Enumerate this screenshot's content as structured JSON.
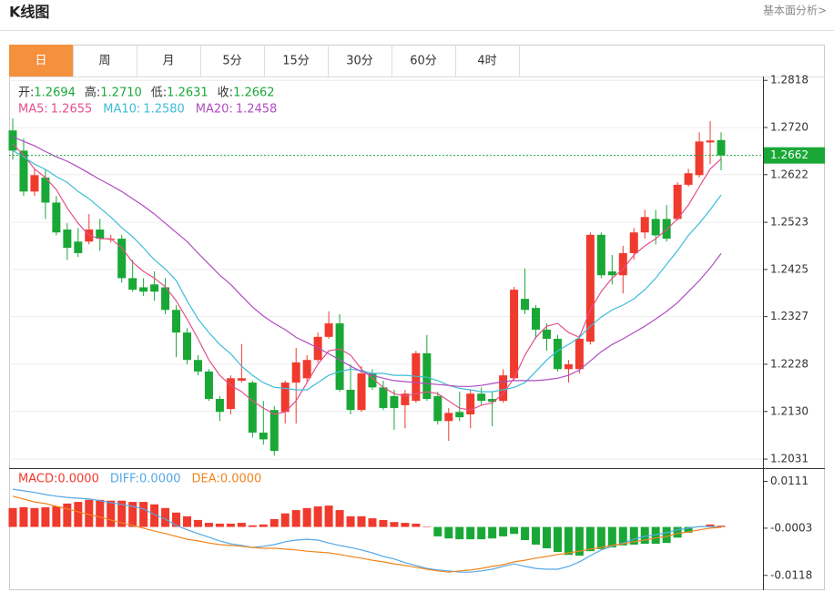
{
  "header": {
    "title": "K线图",
    "link": "基本面分析>"
  },
  "tabs": [
    "日",
    "周",
    "月",
    "5分",
    "15分",
    "30分",
    "60分",
    "4时"
  ],
  "active_tab": 0,
  "chart_data": [
    {
      "type": "candlestick",
      "up_color": "#ef3a2d",
      "down_color": "#19a836",
      "legend": [
        {
          "label": "开:",
          "value": 1.2694
        },
        {
          "label": "高:",
          "value": {
            "value": 1.271,
            "label": "1.2710"
          }
        },
        {
          "label": "低:",
          "value": 1.2631
        },
        {
          "label": "收:",
          "value": 1.2662
        }
      ],
      "open": [
        1.2714,
        1.2672,
        1.2587,
        1.2616,
        1.2564,
        1.2508,
        1.2483,
        1.2483,
        1.2508,
        1.2487,
        1.2489,
        1.2407,
        1.2388,
        1.2394,
        1.2388,
        1.2341,
        1.2294,
        1.2237,
        1.2213,
        1.2156,
        1.2135,
        1.2194,
        1.219,
        1.2086,
        1.2133,
        1.2129,
        1.219,
        1.2199,
        1.2237,
        1.2285,
        1.2313,
        1.2175,
        1.2133,
        1.2209,
        1.218,
        1.2162,
        1.2143,
        1.2152,
        1.2251,
        1.2162,
        1.211,
        1.2129,
        1.2124,
        1.2167,
        1.2156,
        1.2152,
        1.2199,
        1.2364,
        1.2345,
        1.23,
        1.2281,
        1.2218,
        1.2218,
        1.2275,
        1.2497,
        1.2421,
        1.2413,
        1.2459,
        1.2502,
        1.253,
        1.253,
        1.253,
        1.2601,
        1.2621,
        1.2689,
        1.2694
      ],
      "high": [
        1.2739,
        1.2697,
        1.2634,
        1.2634,
        1.2578,
        1.2521,
        1.2511,
        1.254,
        1.253,
        1.2497,
        1.2497,
        1.2445,
        1.2407,
        1.2421,
        1.2407,
        1.2351,
        1.2303,
        1.2247,
        1.2218,
        1.2162,
        1.2205,
        1.227,
        1.2194,
        1.2152,
        1.2141,
        1.2194,
        1.2262,
        1.2247,
        1.2294,
        1.2338,
        1.2332,
        1.2228,
        1.2224,
        1.2218,
        1.2194,
        1.2175,
        1.2175,
        1.2256,
        1.2289,
        1.2171,
        1.2137,
        1.2171,
        1.2175,
        1.218,
        1.2171,
        1.2218,
        1.2389,
        1.2427,
        1.2351,
        1.2313,
        1.2289,
        1.2237,
        1.2289,
        1.2502,
        1.2502,
        1.2455,
        1.2474,
        1.2511,
        1.2549,
        1.2549,
        1.2559,
        1.2606,
        1.2634,
        1.271,
        1.2733,
        1.271
      ],
      "low": [
        1.2653,
        1.2578,
        1.2578,
        1.253,
        1.2496,
        1.2445,
        1.2451,
        1.2477,
        1.2464,
        1.2481,
        1.2398,
        1.2379,
        1.237,
        1.236,
        1.2332,
        1.2243,
        1.2228,
        1.2205,
        1.2152,
        1.211,
        1.2124,
        1.219,
        1.2076,
        1.2061,
        1.2038,
        1.2105,
        1.2105,
        1.219,
        1.2232,
        1.2281,
        1.2171,
        1.2124,
        1.2129,
        1.2175,
        1.2133,
        1.2092,
        1.2095,
        1.2148,
        1.2152,
        1.2103,
        1.2069,
        1.211,
        1.2095,
        1.2143,
        1.2099,
        1.2148,
        1.2194,
        1.2332,
        1.2281,
        1.2256,
        1.2213,
        1.219,
        1.2209,
        1.2269,
        1.2407,
        1.2394,
        1.2375,
        1.2445,
        1.2489,
        1.2477,
        1.2483,
        1.2527,
        1.2597,
        1.2616,
        1.2644,
        1.2631
      ],
      "close": [
        1.2672,
        1.2587,
        1.2621,
        1.2564,
        1.2502,
        1.247,
        1.2459,
        1.2508,
        1.2489,
        1.2489,
        1.2407,
        1.2383,
        1.2379,
        1.2379,
        1.2341,
        1.2294,
        1.2237,
        1.2213,
        1.2156,
        1.2129,
        1.2199,
        1.2199,
        1.2086,
        1.2072,
        1.2048,
        1.219,
        1.2232,
        1.2237,
        1.2285,
        1.2313,
        1.2175,
        1.2133,
        1.2209,
        1.218,
        1.2137,
        1.2137,
        1.2167,
        1.2251,
        1.2156,
        1.211,
        1.2127,
        1.2118,
        1.2167,
        1.2152,
        1.215,
        1.2205,
        1.2383,
        1.2341,
        1.23,
        1.2281,
        1.2218,
        1.2228,
        1.2281,
        1.2497,
        1.2413,
        1.2413,
        1.2459,
        1.2502,
        1.2534,
        1.2496,
        1.2489,
        1.2601,
        1.2625,
        1.2691,
        1.2693,
        1.2662
      ],
      "series": [
        {
          "name": "MA5:",
          "color": "#e4508a",
          "legend_value": 1.2655,
          "values": [
            1.2686,
            1.2663,
            1.2634,
            1.2616,
            1.2591,
            1.2553,
            1.2521,
            1.2496,
            1.2489,
            1.2489,
            1.247,
            1.244,
            1.2421,
            1.2407,
            1.2389,
            1.236,
            1.2322,
            1.2281,
            1.2237,
            1.2205,
            1.2184,
            1.2171,
            1.2152,
            1.2137,
            1.2124,
            1.2129,
            1.2152,
            1.219,
            1.2228,
            1.2256,
            1.226,
            1.2247,
            1.2218,
            1.2199,
            1.218,
            1.2167,
            1.2162,
            1.2167,
            1.2171,
            1.2167,
            1.2152,
            1.2137,
            1.2133,
            1.2143,
            1.2148,
            1.2167,
            1.2199,
            1.2247,
            1.2284,
            1.2307,
            1.2313,
            1.2294,
            1.2284,
            1.2341,
            1.2379,
            1.2407,
            1.2426,
            1.2455,
            1.2474,
            1.2489,
            1.2508,
            1.253,
            1.2559,
            1.2597,
            1.2634,
            1.2655
          ]
        },
        {
          "name": "MA10:",
          "color": "#3cbcd8",
          "legend_value": {
            "value": 1.258,
            "label": "1.2580"
          },
          "values": [
            1.2672,
            1.2659,
            1.2644,
            1.2633,
            1.2618,
            1.2606,
            1.2587,
            1.2572,
            1.2553,
            1.2534,
            1.2512,
            1.2493,
            1.247,
            1.2445,
            1.2426,
            1.2402,
            1.236,
            1.2322,
            1.2294,
            1.2269,
            1.225,
            1.2224,
            1.2205,
            1.219,
            1.218,
            1.2178,
            1.2175,
            1.2175,
            1.219,
            1.2205,
            1.2213,
            1.2218,
            1.2215,
            1.2209,
            1.2209,
            1.2205,
            1.2205,
            1.2203,
            1.2201,
            1.2194,
            1.2184,
            1.2178,
            1.2175,
            1.2171,
            1.2171,
            1.2175,
            1.218,
            1.219,
            1.2213,
            1.2237,
            1.2256,
            1.2269,
            1.2284,
            1.2307,
            1.2326,
            1.2341,
            1.2351,
            1.2364,
            1.2383,
            1.2407,
            1.2436,
            1.2464,
            1.2496,
            1.2521,
            1.2549,
            1.258
          ]
        },
        {
          "name": "MA20:",
          "color": "#b04cc0",
          "legend_value": 1.2458,
          "values": [
            1.2701,
            1.2691,
            1.2682,
            1.267,
            1.2659,
            1.265,
            1.2638,
            1.2625,
            1.2612,
            1.26,
            1.2587,
            1.2572,
            1.2557,
            1.254,
            1.2521,
            1.2502,
            1.2483,
            1.2459,
            1.2436,
            1.2413,
            1.2394,
            1.237,
            1.2347,
            1.2328,
            1.2313,
            1.23,
            1.2284,
            1.2273,
            1.2262,
            1.225,
            1.2237,
            1.2224,
            1.2213,
            1.2205,
            1.2199,
            1.2194,
            1.2192,
            1.219,
            1.2188,
            1.2186,
            1.2184,
            1.2182,
            1.2182,
            1.2184,
            1.2188,
            1.2192,
            1.2194,
            1.2194,
            1.2194,
            1.2196,
            1.2199,
            1.2205,
            1.2216,
            1.2235,
            1.2254,
            1.2269,
            1.2281,
            1.2294,
            1.2307,
            1.2322,
            1.2338,
            1.2356,
            1.2379,
            1.2402,
            1.2428,
            1.2458
          ]
        }
      ],
      "last_color": "#19a836",
      "ylim": [
        1.2016,
        1.2826
      ],
      "yticks": [
        1.2818,
        {
          "value": 1.272,
          "label": "1.2720"
        },
        1.2622,
        1.2523,
        1.2425,
        1.2327,
        1.2228,
        {
          "value": 1.213,
          "label": "1.2130"
        },
        1.2031
      ],
      "grid": true
    },
    {
      "type": "macd",
      "bars": {
        "name": "MACD:",
        "legend_value": {
          "value": 0,
          "label": "0.0000"
        },
        "up_color": "#ef3a2d",
        "down_color": "#19a836",
        "values": [
          0.0046,
          0.0048,
          0.0046,
          0.0048,
          0.005,
          0.0057,
          0.0061,
          0.0066,
          0.0066,
          0.0064,
          0.0064,
          0.0061,
          0.0061,
          0.0055,
          0.0046,
          0.0035,
          0.0026,
          0.0017,
          0.001,
          0.0008,
          0.0008,
          0.001,
          0.0004,
          0.0006,
          0.0019,
          0.0033,
          0.0041,
          0.0046,
          0.005,
          0.0052,
          0.0041,
          0.0026,
          0.0026,
          0.0021,
          0.0017,
          0.0012,
          0.001,
          0.0008,
          0.0001,
          -0.0023,
          -0.0028,
          -0.003,
          -0.003,
          -0.003,
          -0.0028,
          -0.0023,
          -0.0017,
          -0.0032,
          -0.0043,
          -0.0052,
          -0.0061,
          -0.0068,
          -0.007,
          -0.0059,
          -0.0054,
          -0.005,
          -0.0045,
          -0.0043,
          -0.0041,
          -0.0041,
          -0.0039,
          -0.0026,
          -0.0014,
          0.0001,
          0.0006,
          0.0003
        ]
      },
      "series": [
        {
          "name": "DIFF:",
          "color": "#55a8e6",
          "legend_value": {
            "value": 0,
            "label": "0.0000"
          },
          "values": [
            0.0092,
            0.0088,
            0.0084,
            0.0079,
            0.0075,
            0.0072,
            0.007,
            0.0068,
            0.0064,
            0.0059,
            0.0055,
            0.005,
            0.0044,
            0.003,
            0.0019,
            0.0004,
            -0.0007,
            -0.0016,
            -0.0025,
            -0.0034,
            -0.0041,
            -0.0045,
            -0.005,
            -0.0047,
            -0.0043,
            -0.0036,
            -0.0032,
            -0.003,
            -0.0032,
            -0.0039,
            -0.0045,
            -0.005,
            -0.0056,
            -0.0063,
            -0.0072,
            -0.0078,
            -0.0087,
            -0.0094,
            -0.0101,
            -0.0105,
            -0.0107,
            -0.011,
            -0.011,
            -0.0107,
            -0.0103,
            -0.0096,
            -0.009,
            -0.0096,
            -0.0101,
            -0.0103,
            -0.0103,
            -0.0096,
            -0.0085,
            -0.007,
            -0.0056,
            -0.0047,
            -0.0039,
            -0.003,
            -0.0023,
            -0.0019,
            -0.0014,
            -0.0007,
            -0.0003,
            0.0001,
            0.0001,
            -0.0001
          ]
        },
        {
          "name": "DEA:",
          "color": "#f0851f",
          "legend_value": {
            "value": 0,
            "label": "0.0000"
          },
          "values": [
            0.0075,
            0.0068,
            0.0061,
            0.0057,
            0.005,
            0.0044,
            0.0037,
            0.003,
            0.0024,
            0.0017,
            0.001,
            0.0004,
            -0.0003,
            -0.001,
            -0.0016,
            -0.0023,
            -0.003,
            -0.0034,
            -0.0039,
            -0.0043,
            -0.0045,
            -0.0047,
            -0.005,
            -0.0052,
            -0.0052,
            -0.0054,
            -0.0056,
            -0.0059,
            -0.0061,
            -0.0063,
            -0.0067,
            -0.0072,
            -0.0076,
            -0.0081,
            -0.0085,
            -0.009,
            -0.0094,
            -0.0098,
            -0.0103,
            -0.0107,
            -0.011,
            -0.0107,
            -0.0105,
            -0.0101,
            -0.0096,
            -0.0092,
            -0.0085,
            -0.0081,
            -0.0076,
            -0.0072,
            -0.0067,
            -0.0063,
            -0.0059,
            -0.0054,
            -0.005,
            -0.0045,
            -0.0041,
            -0.0036,
            -0.0032,
            -0.0027,
            -0.0023,
            -0.0016,
            -0.0012,
            -0.0007,
            -0.0003,
            -0.0001
          ]
        }
      ],
      "ylim": [
        -0.0154,
        0.0141
      ],
      "yticks": [
        0.0111,
        -0.0003,
        -0.0118
      ],
      "grid": false
    }
  ]
}
